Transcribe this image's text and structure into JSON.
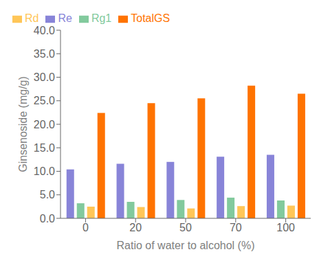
{
  "chart_data": {
    "type": "bar",
    "categories": [
      "0",
      "20",
      "50",
      "70",
      "100"
    ],
    "series": [
      {
        "name": "Re",
        "color": "#8884d8",
        "values": [
          10.4,
          11.6,
          12.0,
          13.1,
          13.5
        ]
      },
      {
        "name": "Rg1",
        "color": "#82ca9d",
        "values": [
          3.2,
          3.5,
          3.9,
          4.4,
          3.8
        ]
      },
      {
        "name": "Rd",
        "color": "#ffc658",
        "values": [
          2.5,
          2.4,
          2.1,
          2.6,
          2.7
        ]
      },
      {
        "name": "TotalGS",
        "color": "#ff7300",
        "values": [
          22.4,
          24.5,
          25.5,
          28.2,
          26.5
        ]
      }
    ],
    "xlabel": "Ratio of water to alcohol (%)",
    "ylabel": "Ginsenoside (mg/g)",
    "ylim": [
      0,
      40
    ],
    "yticks": [
      {
        "value": 0,
        "label": "0.0"
      },
      {
        "value": 5,
        "label": "5.0"
      },
      {
        "value": 10,
        "label": "10.0"
      },
      {
        "value": 15,
        "label": "15.0"
      },
      {
        "value": 20,
        "label": "20.0"
      },
      {
        "value": 25,
        "label": "25.0"
      },
      {
        "value": 30,
        "label": "30.0"
      },
      {
        "value": 35,
        "label": "35.0"
      },
      {
        "value": 40,
        "label": "40.0"
      }
    ],
    "grid": false,
    "legend": "upper left"
  }
}
